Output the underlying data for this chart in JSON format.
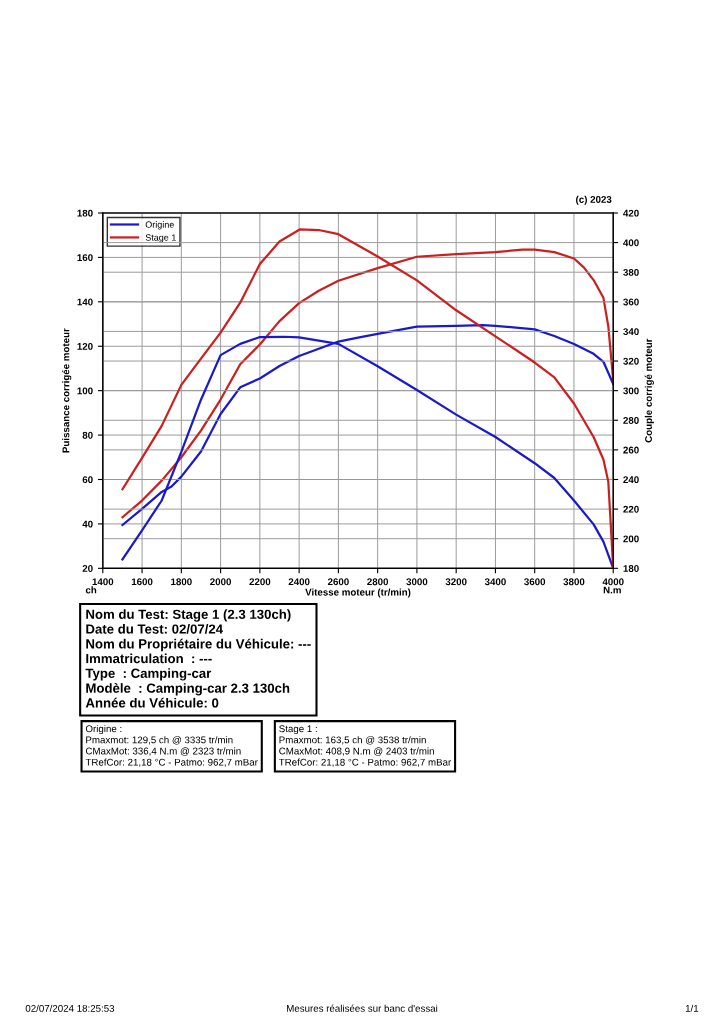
{
  "chart_data": {
    "type": "line",
    "xlabel": "Vitesse moteur (tr/min)",
    "ylabel": "Puissance corrigée moteur",
    "y2label": "Couple corrigé moteur",
    "xlim": [
      1400,
      4000
    ],
    "xticks": [
      1400,
      1600,
      1800,
      2000,
      2200,
      2400,
      2600,
      2800,
      3000,
      3200,
      3400,
      3600,
      3800,
      4000
    ],
    "ylim": [
      20,
      180
    ],
    "yticks": [
      20,
      40,
      60,
      80,
      100,
      120,
      140,
      160,
      180
    ],
    "y2lim": [
      180,
      420
    ],
    "y2ticks": [
      180,
      200,
      220,
      240,
      260,
      280,
      300,
      320,
      340,
      360,
      380,
      400,
      420
    ],
    "grid": true,
    "legend": "top left",
    "line_style": "solid",
    "marker": "none",
    "series": [
      {
        "name": "Origine",
        "color": "#1a1acc",
        "x": [
          1500,
          1600,
          1700,
          1750,
          1800,
          1900,
          2000,
          2100,
          2200,
          2300,
          2400,
          2600,
          2700,
          2800,
          3000,
          3200,
          3335,
          3400,
          3600,
          3700,
          3800,
          3900,
          3950,
          4000
        ],
        "values": [
          39.5,
          46.8,
          54.4,
          56.8,
          61.3,
          72.6,
          89.5,
          101.5,
          105.5,
          111.1,
          115.6,
          122.1,
          123.9,
          125.6,
          128.8,
          129.2,
          129.5,
          129.2,
          127.6,
          124.6,
          121,
          116.6,
          113,
          103
        ]
      },
      {
        "name": "Stage 1",
        "color": "#cc1f1f",
        "x": [
          1500,
          1600,
          1700,
          1800,
          1900,
          2000,
          2100,
          2200,
          2300,
          2400,
          2500,
          2600,
          2800,
          3000,
          3200,
          3400,
          3538,
          3600,
          3700,
          3800,
          3850,
          3900,
          3950,
          3975,
          4000
        ],
        "values": [
          43,
          50.5,
          59.5,
          70,
          82,
          96,
          111.9,
          120.8,
          131.3,
          139.4,
          145,
          149.5,
          155.2,
          160.3,
          161.5,
          162.4,
          163.5,
          163.5,
          162.4,
          159.5,
          155.5,
          149.8,
          141.8,
          128.9,
          104.7
        ]
      },
      {
        "color": "#1a1acc",
        "axis": "y2",
        "x": [
          1500,
          1600,
          1700,
          1800,
          1900,
          2000,
          2100,
          2200,
          2323,
          2400,
          2600,
          2800,
          3000,
          3200,
          3400,
          3600,
          3700,
          3800,
          3900,
          3950,
          4000
        ],
        "values": [
          186,
          205.7,
          225.8,
          258.6,
          293.9,
          324,
          331.6,
          336.2,
          336.4,
          336,
          331.6,
          316.5,
          300.4,
          283.8,
          268.7,
          251,
          241,
          225.8,
          209.7,
          198,
          180
        ]
      },
      {
        "color": "#cc1f1f",
        "axis": "y2",
        "x": [
          1500,
          1600,
          1700,
          1800,
          1900,
          2000,
          2100,
          2200,
          2300,
          2403,
          2500,
          2600,
          2800,
          3000,
          3200,
          3400,
          3600,
          3700,
          3800,
          3900,
          3950,
          3975,
          4000
        ],
        "values": [
          233.4,
          254.6,
          276.2,
          303.9,
          321.6,
          339.2,
          359.4,
          385.5,
          400.7,
          408.9,
          408.5,
          405.7,
          390.6,
          374.5,
          354.3,
          336.7,
          319,
          309,
          291.3,
          268.7,
          253.5,
          238.4,
          180
        ]
      }
    ],
    "annotations": [
      "(c) 2023",
      "ch",
      "N.m",
      "Nom du Test: Stage 1 (2.3 130ch)\nDate du Test: 02/07/24\nNom du Propriétaire du Véhicule: ---\nImmatriculation  : ---\nType  : Camping-car\nModèle  : Camping-car 2.3 130ch\nAnnée du Véhicule: 0",
      "Origine :\nPmaxmot: 129,5 ch @ 3335 tr/min\nCMaxMot: 336,4 N.m @ 2323 tr/min\nTRefCor: 21,18 °C - Patmo: 962,7 mBar",
      "Stage 1 :\nPmaxmot: 163,5 ch @ 3538 tr/min\nCMaxMot: 408,9 N.m @ 2403 tr/min\nTRefCor: 21,18 °C - Patmo: 962,7 mBar",
      "02/07/2024 18:25:53",
      "Mesures réalisées sur banc d'essai",
      "1/1"
    ]
  }
}
